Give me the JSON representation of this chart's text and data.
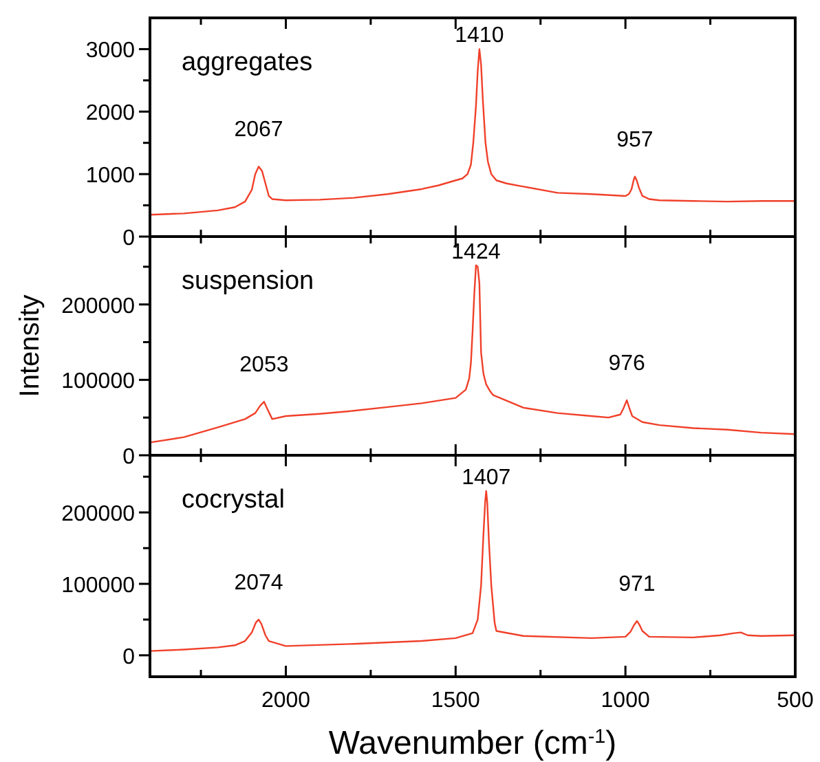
{
  "chart_data": [
    {
      "type": "line",
      "title": "aggregates",
      "xlim": [
        2400,
        500
      ],
      "xticks": [
        {
          "value": 2250,
          "label": null
        },
        2000,
        {
          "value": 1750,
          "label": null
        },
        1500,
        {
          "value": 1250,
          "label": null
        },
        1000,
        {
          "value": 750,
          "label": null
        },
        500
      ],
      "ylim": [
        0,
        3500
      ],
      "yticks": [
        0,
        {
          "value": 500,
          "label": null
        },
        1000,
        {
          "value": 1500,
          "label": null
        },
        2000,
        {
          "value": 2500,
          "label": null
        },
        3000
      ],
      "tick_labels": "y",
      "series": [
        {
          "color": "#f0402a",
          "x": [
            2400,
            2300,
            2200,
            2150,
            2120,
            2100,
            2090,
            2080,
            2070,
            2060,
            2050,
            2040,
            2000,
            1900,
            1800,
            1700,
            1600,
            1550,
            1500,
            1480,
            1465,
            1455,
            1448,
            1440,
            1435,
            1430,
            1425,
            1420,
            1412,
            1405,
            1395,
            1380,
            1350,
            1300,
            1200,
            1100,
            1000,
            990,
            982,
            976,
            972,
            967,
            960,
            950,
            930,
            900,
            800,
            700,
            600,
            500
          ],
          "values": [
            350,
            370,
            420,
            470,
            560,
            750,
            1000,
            1120,
            1050,
            850,
            650,
            600,
            580,
            590,
            620,
            680,
            760,
            820,
            900,
            930,
            1000,
            1150,
            1500,
            2100,
            2650,
            3000,
            2750,
            2200,
            1500,
            1200,
            1000,
            900,
            850,
            800,
            700,
            680,
            650,
            680,
            760,
            900,
            960,
            900,
            780,
            650,
            600,
            580,
            570,
            560,
            570,
            570
          ]
        }
      ],
      "annotations": [
        {
          "text": "2067",
          "x": 2080,
          "y": 1120
        },
        {
          "text": "1410",
          "x": 1430,
          "y": 3000
        },
        {
          "text": "957",
          "x": 972,
          "y": 960
        }
      ]
    },
    {
      "type": "line",
      "title": "suspension",
      "ylabel": "Intensity",
      "xlim": [
        2400,
        500
      ],
      "xticks": [
        {
          "value": 2250,
          "label": null
        },
        2000,
        {
          "value": 1750,
          "label": null
        },
        1500,
        {
          "value": 1250,
          "label": null
        },
        1000,
        {
          "value": 750,
          "label": null
        },
        500
      ],
      "ylim": [
        0,
        290000
      ],
      "yticks": [
        0,
        {
          "value": 50000,
          "label": null
        },
        100000,
        {
          "value": 150000,
          "label": null
        },
        200000,
        {
          "value": 250000,
          "label": null
        }
      ],
      "tick_labels": "y",
      "series": [
        {
          "color": "#f0402a",
          "x": [
            2400,
            2300,
            2200,
            2120,
            2090,
            2075,
            2064,
            2055,
            2040,
            2000,
            1900,
            1800,
            1700,
            1600,
            1500,
            1470,
            1460,
            1455,
            1450,
            1445,
            1440,
            1435,
            1430,
            1425,
            1418,
            1410,
            1400,
            1390,
            1300,
            1200,
            1100,
            1050,
            1015,
            1005,
            996,
            988,
            980,
            950,
            900,
            800,
            700,
            600,
            500
          ],
          "values": [
            17000,
            24000,
            37000,
            48000,
            56000,
            66000,
            71000,
            62000,
            48000,
            52000,
            55000,
            59000,
            64000,
            69000,
            76000,
            87000,
            102000,
            122000,
            165000,
            214000,
            252000,
            250000,
            228000,
            136000,
            108000,
            94000,
            86000,
            80000,
            63000,
            56000,
            52000,
            50000,
            54000,
            63000,
            73000,
            62000,
            52000,
            44000,
            40000,
            36000,
            34000,
            30000,
            28000
          ]
        }
      ],
      "annotations": [
        {
          "text": "2053",
          "x": 2064,
          "y": 71000
        },
        {
          "text": "1424",
          "x": 1440,
          "y": 252000
        },
        {
          "text": "976",
          "x": 996,
          "y": 73000
        }
      ]
    },
    {
      "type": "line",
      "title": "cocrystal",
      "xlabel": "Wavenumber (cm$^{-1}$)",
      "xlim": [
        2400,
        500
      ],
      "xticks": [
        {
          "value": 2250,
          "label": null
        },
        2000,
        {
          "value": 1750,
          "label": null
        },
        1500,
        {
          "value": 1250,
          "label": null
        },
        1000,
        {
          "value": 750,
          "label": null
        },
        500
      ],
      "ylim": [
        -30000,
        280000
      ],
      "yticks": [
        0,
        {
          "value": 50000,
          "label": null
        },
        100000,
        {
          "value": 150000,
          "label": null
        },
        200000,
        {
          "value": 250000,
          "label": null
        }
      ],
      "series": [
        {
          "color": "#f0402a",
          "x": [
            2400,
            2300,
            2200,
            2150,
            2120,
            2100,
            2088,
            2080,
            2072,
            2060,
            2050,
            2000,
            1800,
            1600,
            1500,
            1450,
            1435,
            1425,
            1418,
            1413,
            1410,
            1407,
            1402,
            1395,
            1385,
            1380,
            1300,
            1100,
            1000,
            985,
            975,
            966,
            958,
            950,
            930,
            800,
            720,
            680,
            660,
            640,
            600,
            500
          ],
          "values": [
            6000,
            8000,
            11000,
            14000,
            20000,
            32000,
            46000,
            50000,
            44000,
            28000,
            20000,
            13000,
            16000,
            20000,
            24000,
            31000,
            50000,
            98000,
            170000,
            215000,
            230000,
            215000,
            160000,
            98000,
            45000,
            34000,
            27000,
            24000,
            26000,
            33000,
            42000,
            48000,
            42000,
            34000,
            26000,
            25000,
            28000,
            31000,
            32000,
            28000,
            27000,
            28000
          ]
        }
      ],
      "annotations": [
        {
          "text": "2074",
          "x": 2080,
          "y": 50000
        },
        {
          "text": "1407",
          "x": 1410,
          "y": 230000
        },
        {
          "text": "971",
          "x": 966,
          "y": 48000
        }
      ]
    }
  ]
}
